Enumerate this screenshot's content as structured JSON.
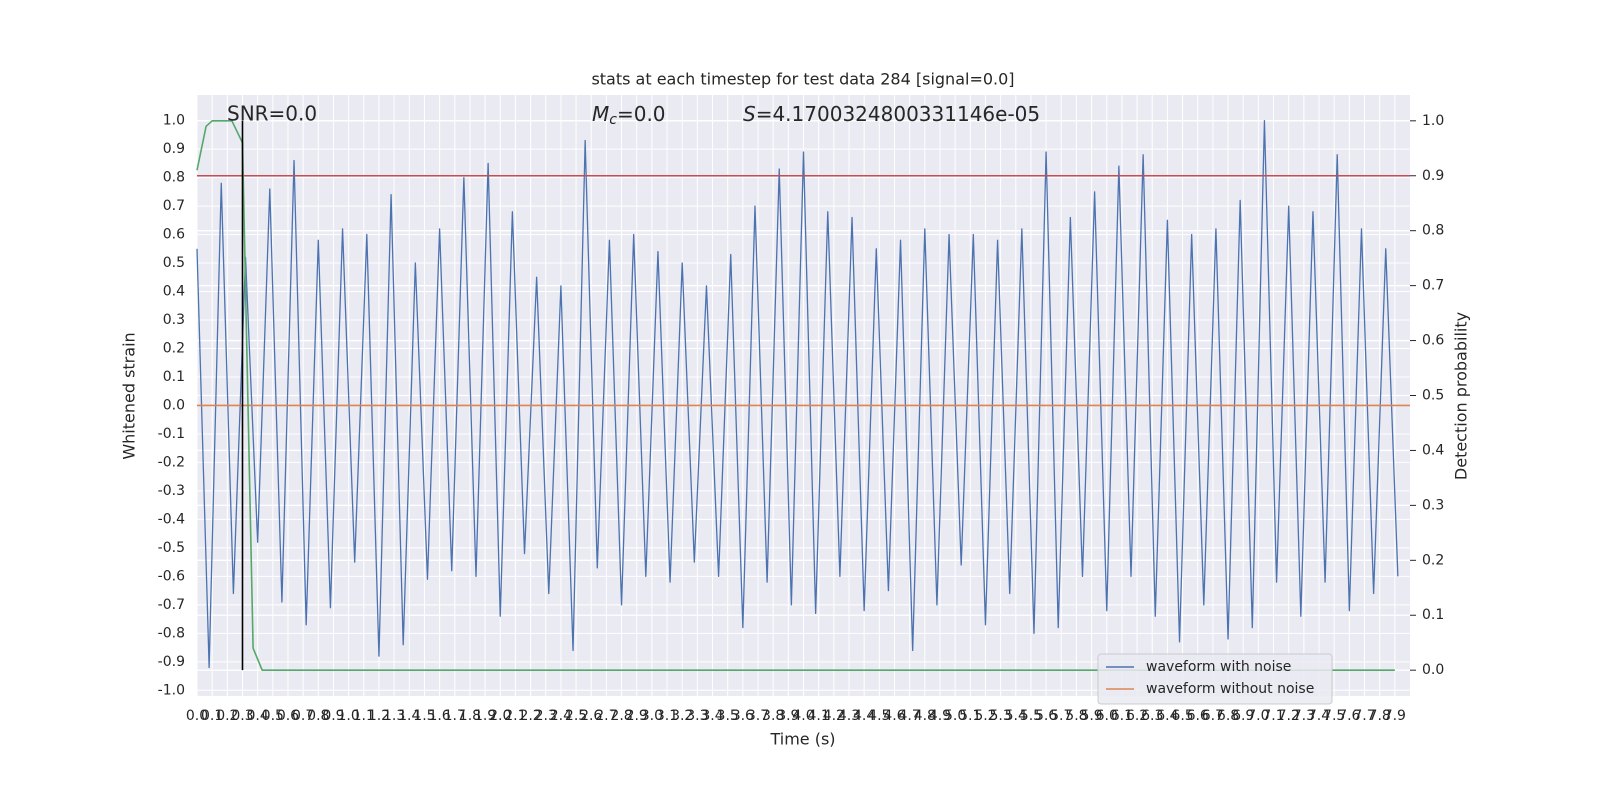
{
  "chart_data": {
    "type": "line",
    "title": "stats at each timestep for test data 284 [signal=0.0]",
    "xlabel": "Time (s)",
    "ylabel": "Whitened strain",
    "y2label": "Detection probability",
    "annotations": [
      {
        "text": "SNR=0.0"
      },
      {
        "symbol": "M",
        "sub": "c",
        "text": "=0.0"
      },
      {
        "symbol": "S",
        "text": "=4.1700324800331146e-05"
      }
    ],
    "xlim": [
      0,
      8.0
    ],
    "ylim": [
      -1.02,
      1.09
    ],
    "y2lim": [
      -0.047,
      1.047
    ],
    "xticks": [
      {
        "value": 0,
        "label": "0.0"
      },
      0.1,
      0.2,
      0.3,
      0.4,
      0.5,
      0.6,
      0.7,
      0.8,
      0.9,
      {
        "value": 1,
        "label": "1.0"
      },
      1.1,
      1.2,
      1.3,
      1.4,
      1.5,
      1.6,
      1.7,
      1.8,
      1.9,
      {
        "value": 2,
        "label": "2.0"
      },
      2.1,
      2.2,
      2.3,
      2.4,
      2.5,
      2.6,
      2.7,
      2.8,
      2.9,
      {
        "value": 3,
        "label": "3.0"
      },
      3.1,
      3.2,
      3.3,
      3.4,
      3.5,
      3.6,
      3.7,
      3.8,
      3.9,
      {
        "value": 4,
        "label": "4.0"
      },
      4.1,
      4.2,
      4.3,
      4.4,
      4.5,
      4.6,
      4.7,
      4.8,
      4.9,
      {
        "value": 5,
        "label": "5.0"
      },
      5.1,
      5.2,
      5.3,
      5.4,
      5.5,
      5.6,
      5.7,
      5.8,
      5.9,
      {
        "value": 6,
        "label": "6.0"
      },
      6.1,
      6.2,
      6.3,
      6.4,
      6.5,
      6.6,
      6.7,
      6.8,
      6.9,
      {
        "value": 7,
        "label": "7.0"
      },
      7.1,
      7.2,
      7.3,
      7.4,
      7.5,
      7.6,
      7.7,
      7.8,
      7.9
    ],
    "yticks": [
      {
        "value": -1,
        "label": "-1.0"
      },
      -0.9,
      -0.8,
      -0.7,
      -0.6,
      -0.5,
      -0.4,
      -0.3,
      -0.2,
      -0.1,
      {
        "value": 0,
        "label": "0.0"
      },
      0.1,
      0.2,
      0.3,
      0.4,
      0.5,
      0.6,
      0.7,
      0.8,
      0.9,
      {
        "value": 1,
        "label": "1.0"
      }
    ],
    "y2ticks": [
      {
        "value": 0,
        "label": "0.0"
      },
      0.1,
      0.2,
      0.3,
      0.4,
      0.5,
      0.6,
      0.7,
      0.8,
      0.9,
      {
        "value": 1,
        "label": "1.0"
      }
    ],
    "grid": true,
    "legend": "lower right",
    "series": [
      {
        "name": "waveform with noise",
        "color": "#4c72b0",
        "x": [
          0,
          0.08,
          0.16,
          0.24,
          0.32,
          0.4,
          0.48,
          0.56,
          0.64,
          0.72,
          0.8,
          0.88,
          0.96,
          1.04,
          1.12,
          1.2,
          1.28,
          1.36,
          1.44,
          1.52,
          1.6,
          1.68,
          1.76,
          1.84,
          1.92,
          2,
          2.08,
          2.16,
          2.24,
          2.32,
          2.4,
          2.48,
          2.56,
          2.64,
          2.72,
          2.8,
          2.88,
          2.96,
          3.04,
          3.12,
          3.2,
          3.28,
          3.36,
          3.44,
          3.52,
          3.6,
          3.68,
          3.76,
          3.84,
          3.92,
          4,
          4.08,
          4.16,
          4.24,
          4.32,
          4.4,
          4.48,
          4.56,
          4.64,
          4.72,
          4.8,
          4.88,
          4.96,
          5.04,
          5.12,
          5.2,
          5.28,
          5.36,
          5.44,
          5.52,
          5.6,
          5.68,
          5.76,
          5.84,
          5.92,
          6,
          6.08,
          6.16,
          6.24,
          6.32,
          6.4,
          6.48,
          6.56,
          6.64,
          6.72,
          6.8,
          6.88,
          6.96,
          7.04,
          7.12,
          7.2,
          7.28,
          7.36,
          7.44,
          7.52,
          7.6,
          7.68,
          7.76,
          7.84,
          7.92
        ],
        "values": [
          0.55,
          -0.92,
          0.78,
          -0.66,
          0.52,
          -0.48,
          0.76,
          -0.69,
          0.86,
          -0.77,
          0.58,
          -0.71,
          0.62,
          -0.55,
          0.6,
          -0.88,
          0.74,
          -0.84,
          0.5,
          -0.61,
          0.62,
          -0.58,
          0.8,
          -0.6,
          0.85,
          -0.74,
          0.68,
          -0.52,
          0.45,
          -0.66,
          0.42,
          -0.86,
          0.93,
          -0.57,
          0.58,
          -0.7,
          0.6,
          -0.6,
          0.54,
          -0.62,
          0.5,
          -0.55,
          0.42,
          -0.6,
          0.53,
          -0.78,
          0.7,
          -0.62,
          0.83,
          -0.7,
          0.89,
          -0.73,
          0.68,
          -0.6,
          0.66,
          -0.72,
          0.55,
          -0.65,
          0.58,
          -0.86,
          0.62,
          -0.7,
          0.6,
          -0.56,
          0.6,
          -0.77,
          0.58,
          -0.66,
          0.62,
          -0.8,
          0.89,
          -0.78,
          0.66,
          -0.6,
          0.75,
          -0.72,
          0.84,
          -0.6,
          0.88,
          -0.74,
          0.65,
          -0.83,
          0.6,
          -0.7,
          0.62,
          -0.82,
          0.72,
          -0.78,
          1.0,
          -0.62,
          0.7,
          -0.74,
          0.68,
          -0.62,
          0.88,
          -0.72,
          0.62,
          -0.66,
          0.55,
          -0.6
        ]
      },
      {
        "name": "waveform without noise",
        "color": "#dd8452",
        "x": [
          0,
          8.0
        ],
        "values": [
          0,
          0
        ]
      },
      {
        "color": "#c44e52",
        "axis": "y2",
        "x": [
          0,
          8.0
        ],
        "values": [
          0.9,
          0.9
        ]
      },
      {
        "color": "#55a868",
        "axis": "y2",
        "x": [
          0,
          0.06,
          0.1,
          0.23,
          0.3,
          0.37,
          0.43,
          7.9
        ],
        "values": [
          0.91,
          0.99,
          1.0,
          1.0,
          0.96,
          0.04,
          0.0,
          0.0
        ]
      },
      {
        "color": "#000000",
        "axis": "y2",
        "x": [
          0.3,
          0.3
        ],
        "values": [
          0,
          1
        ]
      }
    ]
  }
}
